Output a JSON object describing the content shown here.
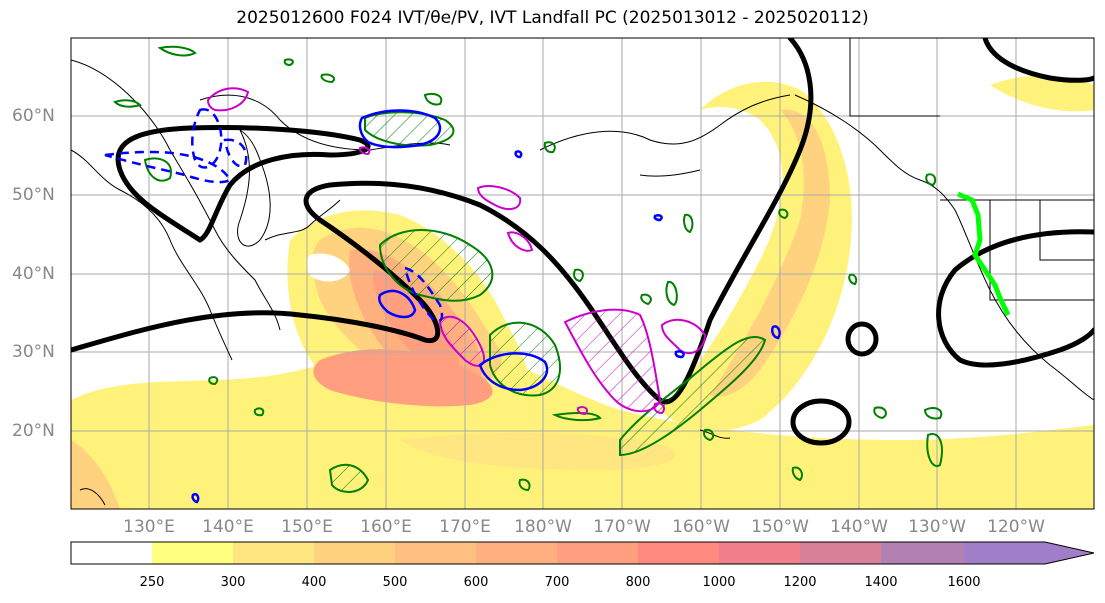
{
  "title": "2025012600 F024 IVT/θe/PV, IVT Landfall PC (2025013012 - 2025020112)",
  "lat_labels": [
    "60°N",
    "50°N",
    "40°N",
    "30°N",
    "20°N"
  ],
  "lon_labels": [
    "130°E",
    "140°E",
    "150°E",
    "160°E",
    "170°E",
    "180°W",
    "170°W",
    "160°W",
    "150°W",
    "140°W",
    "130°W",
    "120°W"
  ],
  "colorbar": {
    "ticks": [
      "250",
      "300",
      "400",
      "500",
      "600",
      "700",
      "800",
      "1000",
      "1200",
      "1400",
      "1600"
    ],
    "colors": [
      "#ffff80",
      "#ffe680",
      "#ffd27f",
      "#ffbf80",
      "#ffb07f",
      "#ff9f80",
      "#ff8a7f",
      "#f0808a",
      "#d98099",
      "#b380b3",
      "#a07fc8"
    ]
  },
  "contour_colors": {
    "ivt_outline": "#000000",
    "theta_e": "#008000",
    "pv_positive": "#cc00cc",
    "pv_negative": "#0000ff",
    "landfall": "#00ff00"
  }
}
